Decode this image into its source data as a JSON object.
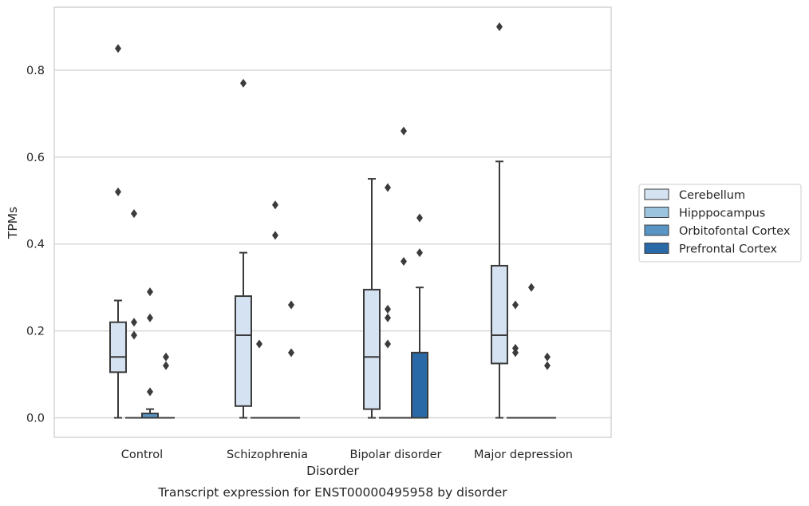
{
  "chart_data": {
    "type": "box",
    "caption": "Transcript expression for ENST00000495958 by disorder",
    "xlabel": "Disorder",
    "ylabel": "TPMs",
    "ylim": [
      -0.045,
      0.945
    ],
    "yticks": [
      0.0,
      0.2,
      0.4,
      0.6,
      0.8
    ],
    "ytick_labels": [
      "0.0",
      "0.2",
      "0.4",
      "0.6",
      "0.8"
    ],
    "grid": "horizontal",
    "legend_position": "right",
    "categories": [
      "Control",
      "Schizophrenia",
      "Bipolar disorder",
      "Major depression"
    ],
    "series": [
      {
        "name": "Cerebellum",
        "color": "#d4e2f1",
        "boxes": [
          {
            "q1": 0.105,
            "median": 0.14,
            "q3": 0.22,
            "whislo": 0.0,
            "whishi": 0.27,
            "fliers": [
              0.52,
              0.85
            ]
          },
          {
            "q1": 0.027,
            "median": 0.19,
            "q3": 0.28,
            "whislo": 0.0,
            "whishi": 0.38,
            "fliers": [
              0.77
            ]
          },
          {
            "q1": 0.02,
            "median": 0.14,
            "q3": 0.295,
            "whislo": 0.0,
            "whishi": 0.55,
            "fliers": []
          },
          {
            "q1": 0.125,
            "median": 0.19,
            "q3": 0.35,
            "whislo": 0.0,
            "whishi": 0.59,
            "fliers": [
              0.9
            ]
          }
        ]
      },
      {
        "name": "Hipppocampus",
        "color": "#9cc4de",
        "boxes": [
          {
            "q1": 0.0,
            "median": 0.0,
            "q3": 0.0,
            "whislo": 0.0,
            "whishi": 0.0,
            "fliers": [
              0.19,
              0.22,
              0.47
            ]
          },
          {
            "q1": 0.0,
            "median": 0.0,
            "q3": 0.0,
            "whislo": 0.0,
            "whishi": 0.0,
            "fliers": [
              0.17
            ]
          },
          {
            "q1": 0.0,
            "median": 0.0,
            "q3": 0.0,
            "whislo": 0.0,
            "whishi": 0.0,
            "fliers": [
              0.17,
              0.23,
              0.25,
              0.53
            ]
          },
          {
            "q1": 0.0,
            "median": 0.0,
            "q3": 0.0,
            "whislo": 0.0,
            "whishi": 0.0,
            "fliers": [
              0.15,
              0.16,
              0.26
            ]
          }
        ]
      },
      {
        "name": "Orbitofontal Cortex",
        "color": "#5895c4",
        "boxes": [
          {
            "q1": 0.0,
            "median": 0.0,
            "q3": 0.01,
            "whislo": 0.0,
            "whishi": 0.02,
            "fliers": [
              0.06,
              0.23,
              0.29
            ]
          },
          {
            "q1": 0.0,
            "median": 0.0,
            "q3": 0.0,
            "whislo": 0.0,
            "whishi": 0.0,
            "fliers": [
              0.42,
              0.49
            ]
          },
          {
            "q1": 0.0,
            "median": 0.0,
            "q3": 0.0,
            "whislo": 0.0,
            "whishi": 0.0,
            "fliers": [
              0.36,
              0.66
            ]
          },
          {
            "q1": 0.0,
            "median": 0.0,
            "q3": 0.0,
            "whislo": 0.0,
            "whishi": 0.0,
            "fliers": [
              0.3
            ]
          }
        ]
      },
      {
        "name": "Prefrontal Cortex",
        "color": "#2a69a7",
        "boxes": [
          {
            "q1": 0.0,
            "median": 0.0,
            "q3": 0.0,
            "whislo": 0.0,
            "whishi": 0.0,
            "fliers": [
              0.12,
              0.14
            ]
          },
          {
            "q1": 0.0,
            "median": 0.0,
            "q3": 0.0,
            "whislo": 0.0,
            "whishi": 0.0,
            "fliers": [
              0.15,
              0.26
            ]
          },
          {
            "q1": 0.0,
            "median": 0.0,
            "q3": 0.15,
            "whislo": 0.0,
            "whishi": 0.3,
            "fliers": [
              0.38,
              0.46
            ]
          },
          {
            "q1": 0.0,
            "median": 0.0,
            "q3": 0.0,
            "whislo": 0.0,
            "whishi": 0.0,
            "fliers": [
              0.12,
              0.14
            ]
          }
        ]
      }
    ]
  }
}
